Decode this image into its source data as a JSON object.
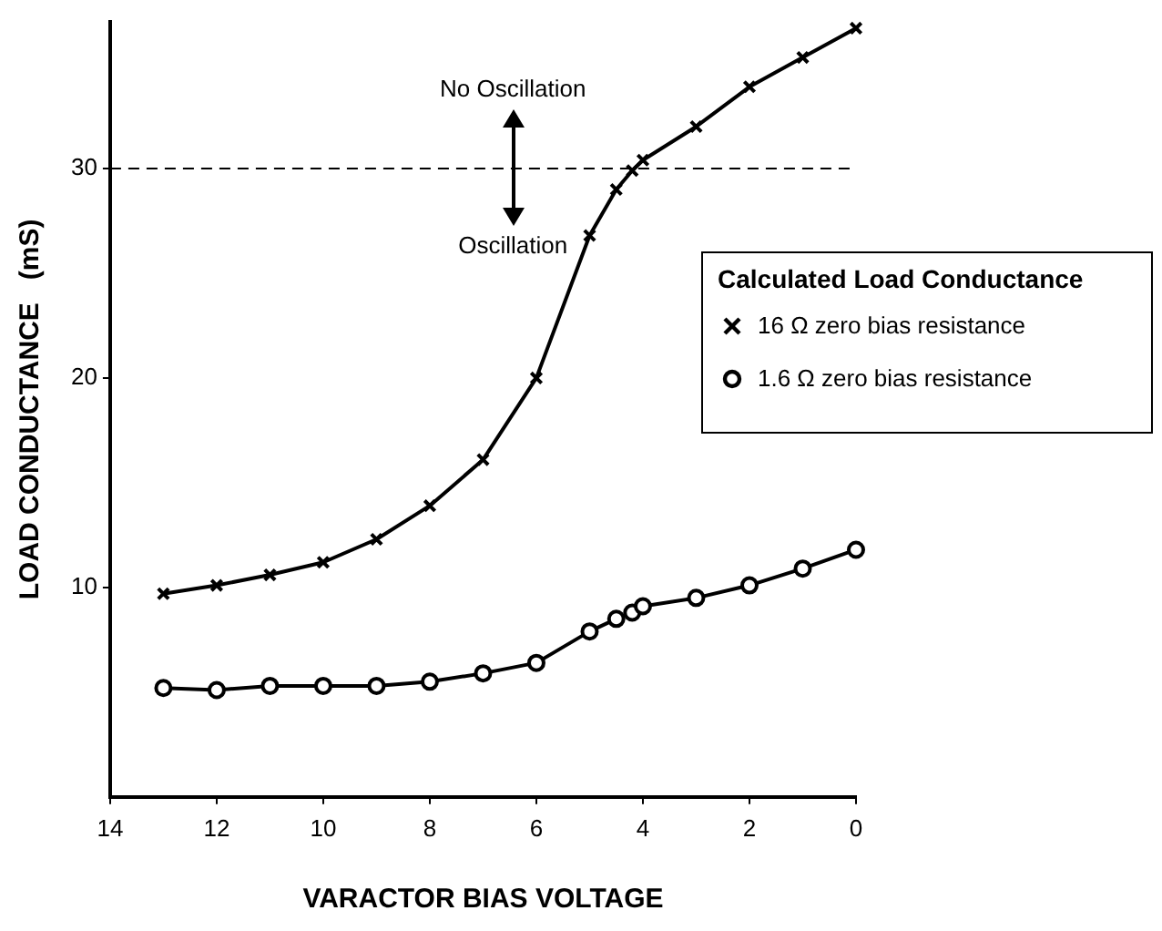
{
  "chart_data": {
    "type": "line",
    "xlabel": "VARACTOR BIAS VOLTAGE",
    "ylabel": "LOAD CONDUCTANCE   (mS)",
    "legend_title": "Calculated Load Conductance",
    "xlim": [
      14,
      0
    ],
    "xticks": [
      14,
      12,
      10,
      8,
      6,
      4,
      2,
      0
    ],
    "ylim": [
      0,
      37
    ],
    "yticks": [
      10,
      20,
      30
    ],
    "grid": false,
    "legend": "right",
    "line_style": "solid",
    "ref_lines": [
      {
        "axis": "y",
        "value": 30,
        "line_style": "dashed"
      }
    ],
    "annotations": [
      "No Oscillation",
      "Oscillation"
    ],
    "series": [
      {
        "name": "16 Ω zero bias resistance",
        "color": "#000000",
        "marker": "cross",
        "x": [
          13,
          12,
          11,
          10,
          9,
          8,
          7,
          6,
          5,
          4.5,
          4.2,
          4,
          3,
          2,
          1,
          0
        ],
        "values": [
          9.7,
          10.1,
          10.6,
          11.2,
          12.3,
          13.9,
          16.1,
          20.0,
          26.8,
          29.0,
          29.9,
          30.4,
          32.0,
          33.9,
          35.3,
          36.7
        ]
      },
      {
        "name": "1.6 Ω zero bias resistance",
        "color": "#000000",
        "marker": "circle",
        "x": [
          13,
          12,
          11,
          10,
          9,
          8,
          7,
          6,
          5,
          4.5,
          4.2,
          4,
          3,
          2,
          1,
          0
        ],
        "values": [
          5.2,
          5.1,
          5.3,
          5.3,
          5.3,
          5.5,
          5.9,
          6.4,
          7.9,
          8.5,
          8.8,
          9.1,
          9.5,
          10.1,
          10.9,
          11.8
        ]
      }
    ]
  }
}
